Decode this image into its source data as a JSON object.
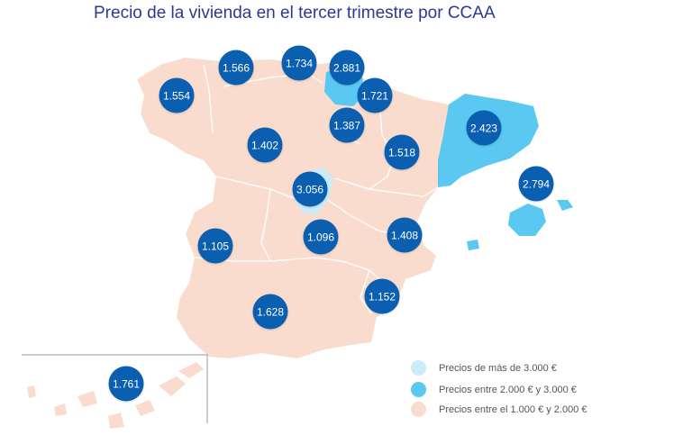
{
  "title": "Precio de la vivienda en el tercer trimestre por CCAA",
  "colors": {
    "high": "#c9ecfa",
    "mid": "#5ac8f0",
    "low": "#f9dccd",
    "bubble": "#0a5fb0",
    "title": "#2a3a93"
  },
  "regions": {
    "galicia": "1.554",
    "asturias": "1.566",
    "cantabria": "1.734",
    "pais_vasco": "2.881",
    "navarra": "1.721",
    "la_rioja": "1.387",
    "castilla_leon": "1.402",
    "aragon": "1.518",
    "cataluna": "2.423",
    "baleares": "2.794",
    "madrid": "3.056",
    "extremadura": "1.105",
    "castilla_la_mancha": "1.096",
    "valencia": "1.408",
    "murcia": "1.152",
    "andalucia": "1.628",
    "canarias": "1.761"
  },
  "legend": [
    {
      "label": "Precios de más de 3.000 €",
      "color": "#c9ecfa"
    },
    {
      "label": "Precios entre 2.000 € y 3.000 €",
      "color": "#5ac8f0"
    },
    {
      "label": "Precios entre el 1.000 € y 2.000 €",
      "color": "#f9dccd"
    }
  ]
}
